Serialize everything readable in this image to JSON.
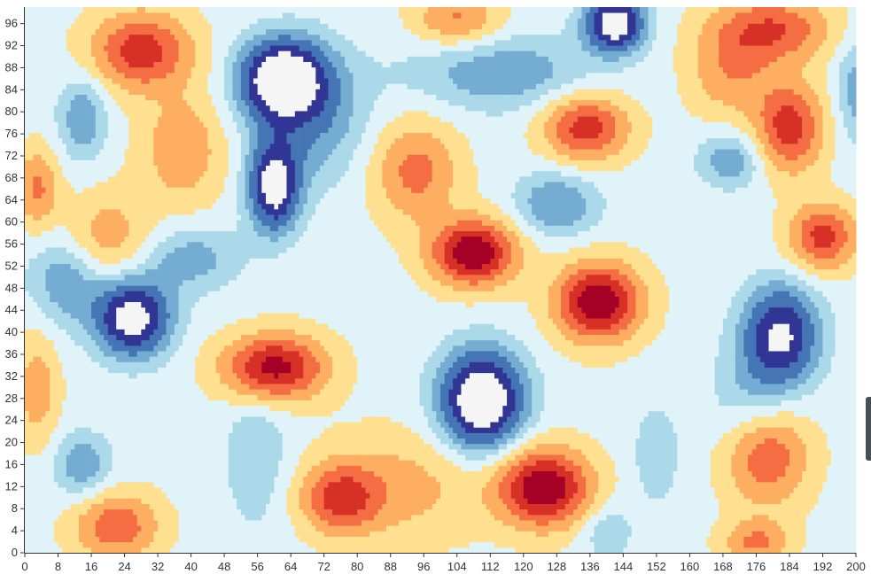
{
  "chart_data": {
    "type": "heatmap",
    "title": "",
    "xlabel": "",
    "ylabel": "",
    "xlim": [
      0,
      200
    ],
    "ylim": [
      0,
      99
    ],
    "grid_cols": 200,
    "grid_rows": 100,
    "x_ticks": [
      0,
      8,
      16,
      24,
      32,
      40,
      48,
      56,
      64,
      72,
      80,
      88,
      96,
      104,
      112,
      120,
      128,
      136,
      144,
      152,
      160,
      168,
      176,
      184,
      192,
      200
    ],
    "y_ticks": [
      0,
      4,
      8,
      12,
      16,
      20,
      24,
      28,
      32,
      36,
      40,
      44,
      48,
      52,
      56,
      60,
      64,
      68,
      72,
      76,
      80,
      84,
      88,
      92,
      96
    ],
    "color_levels": [
      "#f5f5f5",
      "#313695",
      "#4575b4",
      "#74add1",
      "#abd9e9",
      "#e0f3f8",
      "#fee090",
      "#fdae61",
      "#f46d43",
      "#d73027",
      "#a50026",
      "#f5f5f5"
    ],
    "bumps": [
      {
        "x": 62,
        "y": 87,
        "amp": -2.6,
        "sx": 10,
        "sy": 7
      },
      {
        "x": 60,
        "y": 67,
        "amp": -2.3,
        "sx": 6,
        "sy": 8
      },
      {
        "x": 68,
        "y": 80,
        "amp": -1.0,
        "sx": 14,
        "sy": 12
      },
      {
        "x": 26,
        "y": 43,
        "amp": -2.4,
        "sx": 9,
        "sy": 7
      },
      {
        "x": 10,
        "y": 50,
        "amp": -0.9,
        "sx": 9,
        "sy": 8
      },
      {
        "x": 40,
        "y": 54,
        "amp": -0.8,
        "sx": 12,
        "sy": 6
      },
      {
        "x": 110,
        "y": 28,
        "amp": -2.8,
        "sx": 10,
        "sy": 9
      },
      {
        "x": 142,
        "y": 97,
        "amp": -2.5,
        "sx": 7,
        "sy": 5
      },
      {
        "x": 115,
        "y": 88,
        "amp": -0.9,
        "sx": 22,
        "sy": 7
      },
      {
        "x": 182,
        "y": 40,
        "amp": -2.1,
        "sx": 9,
        "sy": 9
      },
      {
        "x": 175,
        "y": 25,
        "amp": -0.8,
        "sx": 10,
        "sy": 12
      },
      {
        "x": 128,
        "y": 64,
        "amp": -1.0,
        "sx": 10,
        "sy": 6
      },
      {
        "x": 170,
        "y": 72,
        "amp": -0.9,
        "sx": 8,
        "sy": 5
      },
      {
        "x": 14,
        "y": 16,
        "amp": -0.9,
        "sx": 7,
        "sy": 6
      },
      {
        "x": 14,
        "y": 80,
        "amp": -0.9,
        "sx": 6,
        "sy": 8
      },
      {
        "x": 56,
        "y": 18,
        "amp": -0.6,
        "sx": 8,
        "sy": 14
      },
      {
        "x": 140,
        "y": 4,
        "amp": -0.6,
        "sx": 6,
        "sy": 5
      },
      {
        "x": 200,
        "y": 85,
        "amp": -0.8,
        "sx": 5,
        "sy": 10
      },
      {
        "x": 108,
        "y": 55,
        "amp": 2.6,
        "sx": 10,
        "sy": 6
      },
      {
        "x": 138,
        "y": 46,
        "amp": 2.6,
        "sx": 10,
        "sy": 7
      },
      {
        "x": 94,
        "y": 70,
        "amp": 1.3,
        "sx": 10,
        "sy": 9
      },
      {
        "x": 60,
        "y": 34,
        "amp": 2.4,
        "sx": 12,
        "sy": 6
      },
      {
        "x": 125,
        "y": 12,
        "amp": 2.6,
        "sx": 11,
        "sy": 7
      },
      {
        "x": 28,
        "y": 92,
        "amp": 1.9,
        "sx": 12,
        "sy": 7
      },
      {
        "x": 135,
        "y": 78,
        "amp": 1.9,
        "sx": 10,
        "sy": 6
      },
      {
        "x": 184,
        "y": 78,
        "amp": 1.9,
        "sx": 8,
        "sy": 8
      },
      {
        "x": 180,
        "y": 96,
        "amp": 1.6,
        "sx": 14,
        "sy": 6
      },
      {
        "x": 192,
        "y": 58,
        "amp": 1.8,
        "sx": 8,
        "sy": 6
      },
      {
        "x": 178,
        "y": 18,
        "amp": 1.9,
        "sx": 10,
        "sy": 9
      },
      {
        "x": 22,
        "y": 5,
        "amp": 1.5,
        "sx": 10,
        "sy": 6
      },
      {
        "x": 76,
        "y": 10,
        "amp": 1.6,
        "sx": 9,
        "sy": 6
      },
      {
        "x": 20,
        "y": 58,
        "amp": 0.9,
        "sx": 10,
        "sy": 8
      },
      {
        "x": 38,
        "y": 74,
        "amp": 1.0,
        "sx": 10,
        "sy": 10
      },
      {
        "x": 170,
        "y": 88,
        "amp": 1.0,
        "sx": 10,
        "sy": 8
      },
      {
        "x": 3,
        "y": 67,
        "amp": 1.2,
        "sx": 5,
        "sy": 7
      },
      {
        "x": 3,
        "y": 30,
        "amp": 0.9,
        "sx": 5,
        "sy": 10
      },
      {
        "x": 104,
        "y": 98,
        "amp": 1.2,
        "sx": 10,
        "sy": 5
      },
      {
        "x": 176,
        "y": 2,
        "amp": 1.2,
        "sx": 8,
        "sy": 4
      },
      {
        "x": 90,
        "y": 12,
        "amp": 0.8,
        "sx": 20,
        "sy": 10
      },
      {
        "x": 152,
        "y": 18,
        "amp": -0.5,
        "sx": 6,
        "sy": 10
      }
    ]
  }
}
